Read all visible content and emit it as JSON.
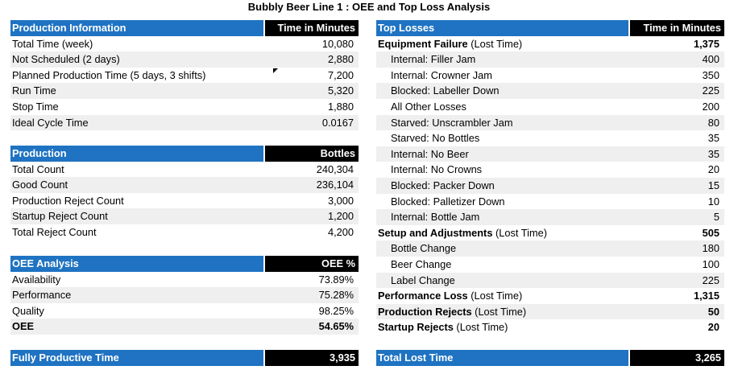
{
  "title": "Bubbly Beer Line 1 : OEE and Top Loss Analysis",
  "production_info": {
    "header": "Production Information",
    "col": "Time in Minutes",
    "rows": [
      {
        "label": "Total Time (week)",
        "value": "10,080"
      },
      {
        "label": "Not Scheduled (2 days)",
        "value": "2,880"
      },
      {
        "label": "Planned Production Time (5 days, 3 shifts)",
        "value": "7,200"
      },
      {
        "label": "Run Time",
        "value": "5,320"
      },
      {
        "label": "Stop Time",
        "value": "1,880"
      },
      {
        "label": "Ideal Cycle Time",
        "value": "0.0167"
      }
    ]
  },
  "production": {
    "header": "Production",
    "col": "Bottles",
    "rows": [
      {
        "label": "Total Count",
        "value": "240,304"
      },
      {
        "label": "Good Count",
        "value": "236,104"
      },
      {
        "label": "Production Reject Count",
        "value": "3,000"
      },
      {
        "label": "Startup Reject Count",
        "value": "1,200"
      },
      {
        "label": "Total Reject Count",
        "value": "4,200"
      }
    ]
  },
  "oee": {
    "header": "OEE Analysis",
    "col": "OEE %",
    "rows": [
      {
        "label": "Availability",
        "value": "73.89%"
      },
      {
        "label": "Performance",
        "value": "75.28%"
      },
      {
        "label": "Quality",
        "value": "98.25%"
      },
      {
        "label": "OEE",
        "value": "54.65%"
      }
    ]
  },
  "fully_productive": {
    "label": "Fully Productive Time",
    "value": "3,935"
  },
  "top_losses": {
    "header": "Top Losses",
    "col": "Time in Minutes",
    "rows": [
      {
        "label": "Equipment Failure",
        "suffix": " (Lost Time)",
        "value": "1,375"
      },
      {
        "label": "Internal: Filler Jam",
        "value": "400"
      },
      {
        "label": "Internal: Crowner Jam",
        "value": "350"
      },
      {
        "label": "Blocked: Labeller Down",
        "value": "225"
      },
      {
        "label": "All Other Losses",
        "value": "200"
      },
      {
        "label": "Starved: Unscrambler Jam",
        "value": "80"
      },
      {
        "label": "Starved: No Bottles",
        "value": "35"
      },
      {
        "label": "Internal: No Beer",
        "value": "35"
      },
      {
        "label": "Internal: No Crowns",
        "value": "20"
      },
      {
        "label": "Blocked: Packer Down",
        "value": "15"
      },
      {
        "label": "Blocked: Palletizer Down",
        "value": "10"
      },
      {
        "label": "Internal: Bottle Jam",
        "value": "5"
      },
      {
        "label": "Setup and Adjustments",
        "suffix": " (Lost Time)",
        "value": "505"
      },
      {
        "label": "Bottle Change",
        "value": "180"
      },
      {
        "label": "Beer Change",
        "value": "100"
      },
      {
        "label": "Label Change",
        "value": "225"
      },
      {
        "label": "Performance Loss",
        "suffix": " (Lost Time)",
        "value": "1,315"
      },
      {
        "label": "Production Rejects",
        "suffix": " (Lost Time)",
        "value": "50"
      },
      {
        "label": "Startup Rejects",
        "suffix": " (Lost Time)",
        "value": "20"
      }
    ]
  },
  "total_lost": {
    "label": "Total Lost Time",
    "value": "3,265"
  }
}
